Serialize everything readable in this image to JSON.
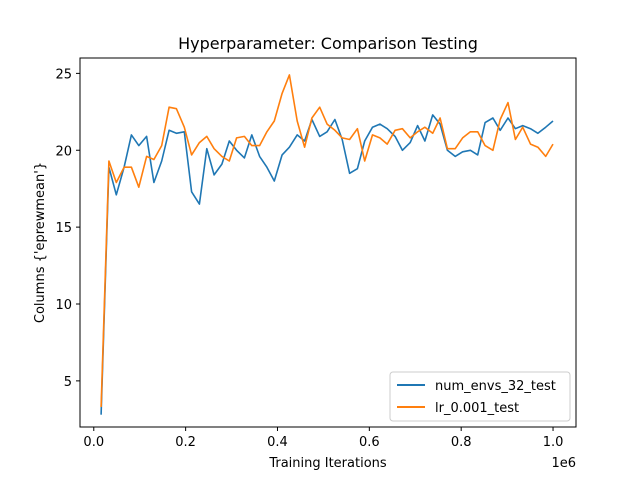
{
  "chart_data": {
    "type": "line",
    "title": "Hyperparameter: Comparison Testing",
    "xlabel": "Training Iterations",
    "ylabel": "Columns {'eprewmean'}",
    "x_offset_label": "1e6",
    "xlim": [
      -0.03,
      1.05
    ],
    "ylim": [
      2.0,
      26.0
    ],
    "x_ticks": [
      0.0,
      0.2,
      0.4,
      0.6,
      0.8,
      1.0
    ],
    "x_tick_labels": [
      "0.0",
      "0.2",
      "0.4",
      "0.6",
      "0.8",
      "1.0"
    ],
    "y_ticks": [
      5,
      10,
      15,
      20,
      25
    ],
    "y_tick_labels": [
      "5",
      "10",
      "15",
      "20",
      "25"
    ],
    "grid": false,
    "legend_position": "lower-right",
    "series": [
      {
        "name": "num_envs_32_test",
        "color": "#1f77b4",
        "x": [
          0.016,
          0.033,
          0.049,
          0.066,
          0.082,
          0.098,
          0.115,
          0.131,
          0.148,
          0.164,
          0.18,
          0.197,
          0.213,
          0.23,
          0.246,
          0.262,
          0.279,
          0.295,
          0.311,
          0.328,
          0.344,
          0.361,
          0.377,
          0.393,
          0.41,
          0.426,
          0.443,
          0.459,
          0.475,
          0.492,
          0.508,
          0.525,
          0.541,
          0.557,
          0.574,
          0.59,
          0.607,
          0.623,
          0.639,
          0.656,
          0.672,
          0.689,
          0.705,
          0.721,
          0.738,
          0.754,
          0.77,
          0.787,
          0.803,
          0.82,
          0.836,
          0.852,
          0.869,
          0.885,
          0.902,
          0.918,
          0.934,
          0.951,
          0.967,
          0.984,
          1.0
        ],
        "y": [
          2.8,
          18.9,
          17.1,
          18.9,
          21.0,
          20.3,
          20.9,
          17.9,
          19.3,
          21.3,
          21.1,
          21.2,
          17.3,
          16.5,
          20.1,
          18.4,
          19.1,
          20.6,
          20.0,
          19.5,
          21.0,
          19.6,
          18.9,
          18.0,
          19.7,
          20.2,
          21.0,
          20.6,
          22.0,
          20.9,
          21.2,
          22.0,
          20.7,
          18.5,
          18.8,
          20.6,
          21.5,
          21.7,
          21.4,
          20.9,
          20.0,
          20.5,
          21.6,
          20.6,
          22.3,
          21.7,
          20.0,
          19.6,
          19.9,
          20.0,
          19.7,
          21.8,
          22.1,
          21.3,
          22.1,
          21.4,
          21.6,
          21.4,
          21.1,
          21.5,
          21.9
        ]
      },
      {
        "name": "lr_0.001_test",
        "color": "#ff7f0e",
        "x": [
          0.016,
          0.033,
          0.049,
          0.066,
          0.082,
          0.098,
          0.115,
          0.131,
          0.148,
          0.164,
          0.18,
          0.197,
          0.213,
          0.23,
          0.246,
          0.262,
          0.279,
          0.295,
          0.311,
          0.328,
          0.344,
          0.361,
          0.377,
          0.393,
          0.41,
          0.426,
          0.443,
          0.459,
          0.475,
          0.492,
          0.508,
          0.525,
          0.541,
          0.557,
          0.574,
          0.59,
          0.607,
          0.623,
          0.639,
          0.656,
          0.672,
          0.689,
          0.705,
          0.721,
          0.738,
          0.754,
          0.77,
          0.787,
          0.803,
          0.82,
          0.836,
          0.852,
          0.869,
          0.885,
          0.902,
          0.918,
          0.934,
          0.951,
          0.967,
          0.984,
          1.0
        ],
        "y": [
          3.3,
          19.3,
          17.9,
          18.9,
          18.9,
          17.6,
          19.6,
          19.4,
          20.3,
          22.8,
          22.7,
          21.5,
          19.7,
          20.5,
          20.9,
          20.1,
          19.6,
          19.3,
          20.8,
          20.9,
          20.3,
          20.3,
          21.2,
          21.9,
          23.7,
          24.9,
          21.9,
          20.2,
          22.1,
          22.8,
          21.7,
          21.3,
          20.8,
          20.7,
          21.4,
          19.3,
          21.0,
          20.8,
          20.4,
          21.3,
          21.4,
          20.8,
          21.2,
          21.5,
          21.1,
          22.1,
          20.1,
          20.1,
          20.8,
          21.2,
          21.2,
          20.3,
          20.0,
          22.0,
          23.1,
          20.7,
          21.5,
          20.4,
          20.2,
          19.6,
          20.4
        ]
      }
    ]
  }
}
